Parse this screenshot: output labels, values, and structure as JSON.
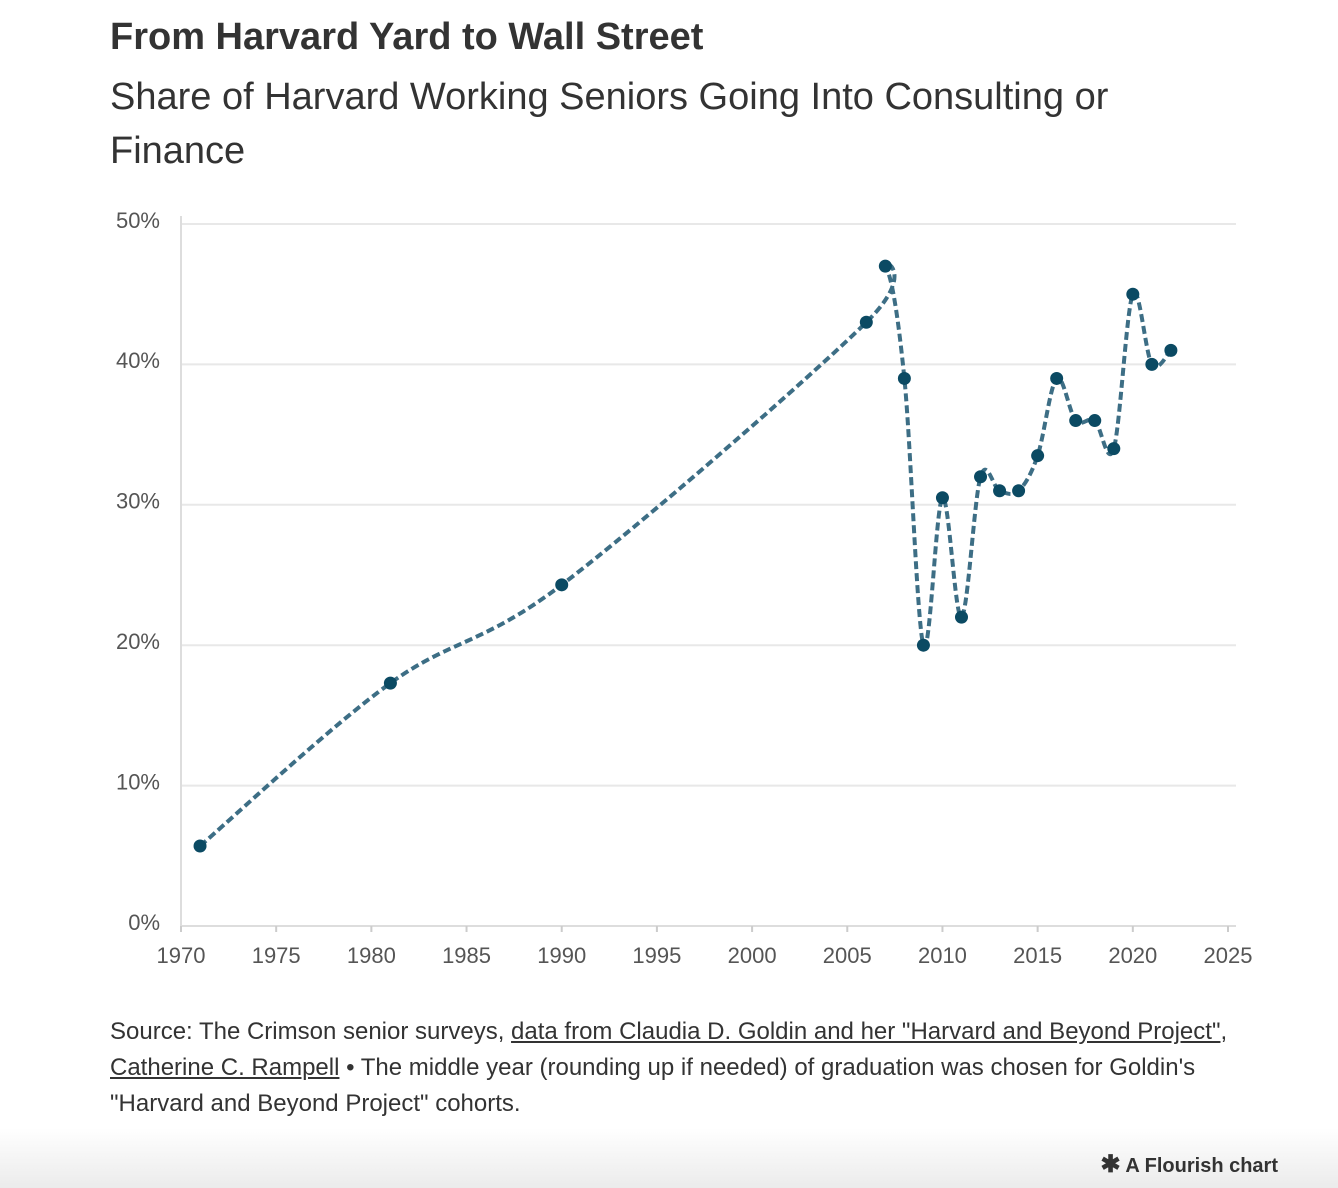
{
  "chart_data": {
    "type": "line",
    "title": "From Harvard Yard to Wall Street",
    "subtitle": "Share of Harvard Working Seniors Going Into Consulting or Finance",
    "x": [
      1971,
      1981,
      1990,
      2006,
      2007,
      2008,
      2009,
      2010,
      2011,
      2012,
      2013,
      2014,
      2015,
      2016,
      2017,
      2018,
      2019,
      2020,
      2021,
      2022
    ],
    "series": [
      {
        "color": "#0b4a63",
        "values": [
          5.7,
          17.3,
          24.3,
          43,
          47,
          39,
          20,
          30.5,
          22,
          32,
          31,
          31,
          33.5,
          39,
          36,
          36,
          34,
          45,
          40,
          41
        ]
      }
    ],
    "xlim": [
      1970,
      2025
    ],
    "xticks": [
      1970,
      1975,
      1980,
      1985,
      1990,
      1995,
      2000,
      2005,
      2010,
      2015,
      2020,
      2025
    ],
    "ylim": [
      0,
      50
    ],
    "yticks": [
      {
        "value": 0,
        "label": "0%"
      },
      {
        "value": 10,
        "label": "10%"
      },
      {
        "value": 20,
        "label": "20%"
      },
      {
        "value": 30,
        "label": "30%"
      },
      {
        "value": 40,
        "label": "40%"
      },
      {
        "value": 50,
        "label": "50%"
      }
    ],
    "grid": true,
    "line_style": "dashed"
  },
  "source": [
    {
      "text": "Source: The Crimson senior surveys, "
    },
    {
      "text": "data from Claudia D. Goldin and her \"Harvard and Beyond Project\"",
      "link": true
    },
    {
      "text": ", "
    },
    {
      "text": "Catherine C. Rampell",
      "link": true
    },
    {
      "text": " • The middle year (rounding up if needed) of graduation was chosen for Goldin's \"Harvard and Beyond Project\" cohorts."
    }
  ],
  "footer": "A Flourish chart"
}
